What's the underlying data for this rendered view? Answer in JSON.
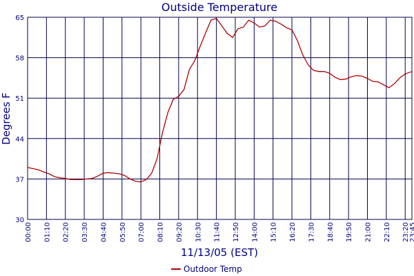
{
  "chart_data": {
    "type": "line",
    "title": "Outside Temperature",
    "xlabel": "11/13/05 (EST)",
    "ylabel": "Degrees F",
    "x": [
      0,
      20,
      40,
      60,
      80,
      100,
      120,
      140,
      160,
      180,
      200,
      220,
      240,
      260,
      280,
      300,
      320,
      340,
      360,
      380,
      400,
      420,
      440,
      460,
      480,
      500,
      520,
      540,
      560,
      580,
      600,
      620,
      640,
      660,
      680,
      700,
      720,
      740,
      760,
      780,
      800,
      820,
      840,
      860,
      880,
      900,
      920,
      940,
      960,
      980,
      1000,
      1020,
      1040,
      1060,
      1080,
      1100,
      1120,
      1140,
      1160,
      1180,
      1200,
      1220,
      1240,
      1260,
      1280,
      1300,
      1320,
      1340,
      1360,
      1380,
      1400,
      1425
    ],
    "series": [
      {
        "name": "Outdoor Temp",
        "color": "#b00000",
        "values": [
          39.0,
          38.8,
          38.6,
          38.2,
          37.9,
          37.4,
          37.2,
          37.1,
          36.9,
          36.9,
          36.9,
          37.0,
          37.1,
          37.5,
          38.0,
          38.1,
          38.0,
          37.9,
          37.6,
          37.0,
          36.6,
          36.5,
          36.9,
          38.0,
          40.5,
          45.0,
          48.5,
          50.8,
          51.3,
          52.5,
          56.0,
          57.5,
          60.0,
          62.3,
          64.5,
          64.8,
          63.5,
          62.2,
          61.5,
          63.0,
          63.3,
          64.5,
          64.0,
          63.3,
          63.5,
          64.5,
          64.3,
          63.8,
          63.2,
          62.8,
          61.0,
          58.5,
          56.8,
          55.8,
          55.6,
          55.6,
          55.3,
          54.6,
          54.2,
          54.3,
          54.7,
          54.9,
          54.8,
          54.4,
          53.9,
          53.8,
          53.3,
          52.8,
          53.5,
          54.5,
          55.2,
          55.6
        ]
      }
    ],
    "xlim": [
      0,
      1425
    ],
    "xticks": [
      {
        "value": 0,
        "label": "00:00"
      },
      {
        "value": 70,
        "label": "01:10"
      },
      {
        "value": 140,
        "label": "02:20"
      },
      {
        "value": 210,
        "label": "03:30"
      },
      {
        "value": 280,
        "label": "04:40"
      },
      {
        "value": 350,
        "label": "05:50"
      },
      {
        "value": 420,
        "label": "07:00"
      },
      {
        "value": 490,
        "label": "08:10"
      },
      {
        "value": 560,
        "label": "09:20"
      },
      {
        "value": 630,
        "label": "10:30"
      },
      {
        "value": 700,
        "label": "11:40"
      },
      {
        "value": 770,
        "label": "12:50"
      },
      {
        "value": 840,
        "label": "14:00"
      },
      {
        "value": 910,
        "label": "15:10"
      },
      {
        "value": 980,
        "label": "16:20"
      },
      {
        "value": 1050,
        "label": "17:30"
      },
      {
        "value": 1120,
        "label": "18:40"
      },
      {
        "value": 1190,
        "label": "19:50"
      },
      {
        "value": 1260,
        "label": "21:00"
      },
      {
        "value": 1330,
        "label": "22:10"
      },
      {
        "value": 1400,
        "label": "23:20"
      },
      {
        "value": 1425,
        "label": "23:45"
      }
    ],
    "ylim": [
      30,
      65
    ],
    "yticks": [
      30,
      37,
      44,
      51,
      58,
      65
    ],
    "grid": true
  }
}
